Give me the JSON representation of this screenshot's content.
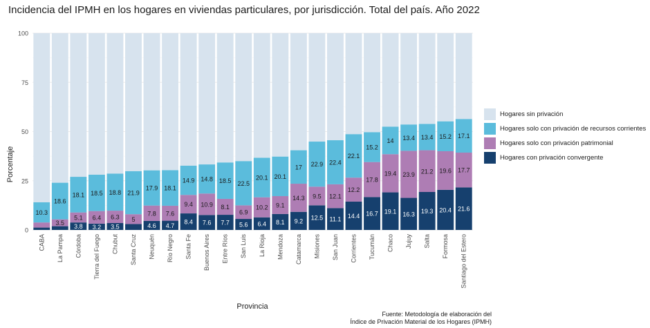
{
  "chart_data": {
    "type": "bar",
    "stacked": true,
    "title": "Incidencia del IPMH en los hogares en viviendas particulares, por jurisdicción. Total del país. Año 2022",
    "xlabel": "Provincia",
    "ylabel": "Porcentaje",
    "ylim": [
      0,
      100
    ],
    "yticks": [
      0,
      25,
      50,
      75,
      100
    ],
    "grid": true,
    "legend_position": "right",
    "categories": [
      "CABA",
      "La Pampa",
      "Córdoba",
      "Tierra del Fuego",
      "Chubut",
      "Santa Cruz",
      "Neuquén",
      "Río Negro",
      "Santa Fe",
      "Buenos Aires",
      "Entre Ríos",
      "San Luis",
      "La Rioja",
      "Mendoza",
      "Catamarca",
      "Misiones",
      "San Juan",
      "Corrientes",
      "Tucumán",
      "Chaco",
      "Jujuy",
      "Salta",
      "Formosa",
      "Santiago del Estero"
    ],
    "series": [
      {
        "name": "Hogares con privación convergente",
        "color": "#16406e",
        "label_color": "#ffffff",
        "values": [
          1.2,
          1.9,
          3.8,
          3.2,
          3.5,
          3.0,
          4.6,
          4.7,
          8.4,
          7.6,
          7.7,
          5.6,
          6.4,
          8.1,
          9.2,
          12.5,
          11.1,
          14.4,
          16.7,
          19.1,
          16.3,
          19.3,
          20.4,
          21.6
        ],
        "labels": [
          "",
          "",
          "3.8",
          "3.2",
          "3.5",
          "",
          "4.6",
          "4.7",
          "8.4",
          "7.6",
          "7.7",
          "5.6",
          "6.4",
          "8.1",
          "9.2",
          "12.5",
          "11.1",
          "14.4",
          "16.7",
          "19.1",
          "16.3",
          "19.3",
          "20.4",
          "21.6"
        ]
      },
      {
        "name": "Hogares solo con privación patrimonial",
        "color": "#ae7db4",
        "label_color": "#1a1a1a",
        "values": [
          2.6,
          3.5,
          5.1,
          6.4,
          6.3,
          5.0,
          7.8,
          7.6,
          9.4,
          10.9,
          8.1,
          6.9,
          10.2,
          9.1,
          14.3,
          9.5,
          12.1,
          12.2,
          17.8,
          19.4,
          23.9,
          21.2,
          19.6,
          17.7
        ],
        "labels": [
          "",
          "3.5",
          "5.1",
          "6.4",
          "6.3",
          "5",
          "7.8",
          "7.6",
          "9.4",
          "10.9",
          "8.1",
          "6.9",
          "10.2",
          "9.1",
          "14.3",
          "9.5",
          "12.1",
          "12.2",
          "17.8",
          "19.4",
          "23.9",
          "21.2",
          "19.6",
          "17.7"
        ]
      },
      {
        "name": "Hogares solo con privación de recursos corrientes",
        "color": "#5bbcdc",
        "label_color": "#1a1a1a",
        "values": [
          10.3,
          18.6,
          18.1,
          18.5,
          18.8,
          21.9,
          17.9,
          18.1,
          14.9,
          14.8,
          18.5,
          22.5,
          20.1,
          20.1,
          17.0,
          22.9,
          22.4,
          22.1,
          15.2,
          14.0,
          13.4,
          13.4,
          15.2,
          17.1
        ],
        "labels": [
          "10.3",
          "18.6",
          "18.1",
          "18.5",
          "18.8",
          "21.9",
          "17.9",
          "18.1",
          "14.9",
          "14.8",
          "18.5",
          "22.5",
          "20.1",
          "20.1",
          "17",
          "22.9",
          "22.4",
          "22.1",
          "15.2",
          "14",
          "13.4",
          "13.4",
          "15.2",
          "17.1"
        ]
      },
      {
        "name": "Hogares sin privación",
        "color": "#d7e3ee",
        "label_color": "#1a1a1a",
        "values": [
          85.9,
          76.0,
          73.0,
          71.9,
          71.4,
          70.1,
          69.7,
          69.6,
          67.3,
          66.7,
          65.7,
          65.0,
          63.3,
          62.7,
          59.5,
          55.1,
          54.4,
          51.3,
          50.3,
          47.5,
          46.4,
          46.1,
          44.8,
          43.6
        ],
        "labels": []
      }
    ]
  },
  "legend": {
    "items": [
      {
        "label": "Hogares sin privación",
        "color": "#d7e3ee"
      },
      {
        "label": "Hogares solo con privación de recursos corrientes",
        "color": "#5bbcdc"
      },
      {
        "label": "Hogares solo con privación patrimonial",
        "color": "#ae7db4"
      },
      {
        "label": "Hogares con privación convergente",
        "color": "#16406e"
      }
    ]
  },
  "caption": {
    "line1": "Fuente: Metodología de elaboración del",
    "line2": "Índice de Privación Material de los Hogares (IPMH)"
  }
}
